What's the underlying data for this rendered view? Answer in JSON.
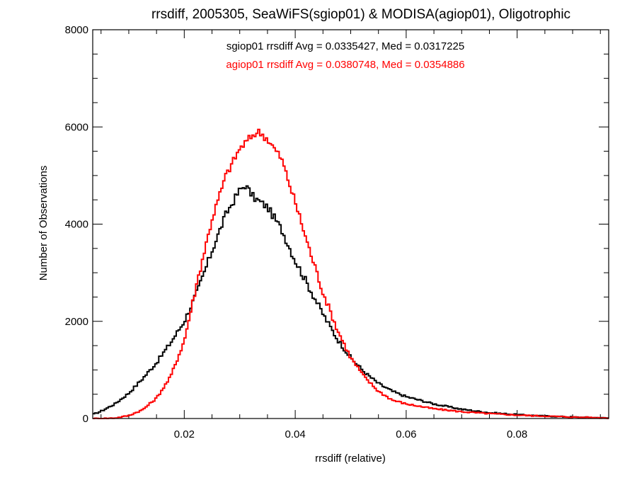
{
  "chart_data": {
    "type": "line",
    "step": true,
    "title": "rrsdiff, 2005305, SeaWiFS(sgiop01) & MODISA(agiop01), Oligotrophic",
    "xlabel": "rrsdiff (relative)",
    "ylabel": "Number of Observations",
    "xlim": [
      0.0035,
      0.0965
    ],
    "ylim": [
      0,
      8000
    ],
    "x_ticks": [
      0.02,
      0.04,
      0.06,
      0.08
    ],
    "x_tick_labels": [
      "0.02",
      "0.04",
      "0.06",
      "0.08"
    ],
    "y_ticks": [
      0,
      2000,
      4000,
      6000,
      8000
    ],
    "y_tick_labels": [
      "0",
      "2000",
      "4000",
      "6000",
      "8000"
    ],
    "grid": false,
    "annotations": [
      {
        "text": "sgiop01 rrsdiff Avg = 0.0335427, Med = 0.0317225",
        "color": "#000000"
      },
      {
        "text": "agiop01 rrsdiff Avg = 0.0380748, Med = 0.0354886",
        "color": "#ff0000"
      }
    ],
    "series": [
      {
        "name": "sgiop01",
        "color": "#000000",
        "x": [
          0.0035,
          0.005,
          0.0075,
          0.01,
          0.0125,
          0.015,
          0.0175,
          0.02,
          0.0225,
          0.025,
          0.0275,
          0.03,
          0.031,
          0.0325,
          0.035,
          0.0375,
          0.04,
          0.0425,
          0.045,
          0.0475,
          0.05,
          0.0525,
          0.055,
          0.0575,
          0.06,
          0.065,
          0.07,
          0.075,
          0.08,
          0.085,
          0.09,
          0.0965
        ],
        "values": [
          80,
          150,
          300,
          520,
          820,
          1150,
          1550,
          2000,
          2650,
          3450,
          4200,
          4700,
          4800,
          4550,
          4350,
          3900,
          3250,
          2700,
          2150,
          1650,
          1250,
          950,
          720,
          560,
          450,
          300,
          190,
          120,
          80,
          50,
          30,
          10
        ]
      },
      {
        "name": "agiop01",
        "color": "#ff0000",
        "x": [
          0.0035,
          0.005,
          0.0075,
          0.01,
          0.0125,
          0.015,
          0.0175,
          0.02,
          0.0225,
          0.025,
          0.0275,
          0.03,
          0.0325,
          0.0335,
          0.035,
          0.0375,
          0.04,
          0.0425,
          0.045,
          0.0475,
          0.05,
          0.0525,
          0.055,
          0.0575,
          0.06,
          0.065,
          0.07,
          0.075,
          0.08,
          0.085,
          0.09,
          0.0965
        ],
        "values": [
          0,
          0,
          10,
          60,
          180,
          420,
          850,
          1600,
          2900,
          4100,
          5000,
          5550,
          5850,
          5900,
          5750,
          5350,
          4450,
          3500,
          2600,
          1850,
          1250,
          850,
          560,
          380,
          300,
          200,
          140,
          100,
          70,
          50,
          30,
          10
        ]
      }
    ]
  }
}
